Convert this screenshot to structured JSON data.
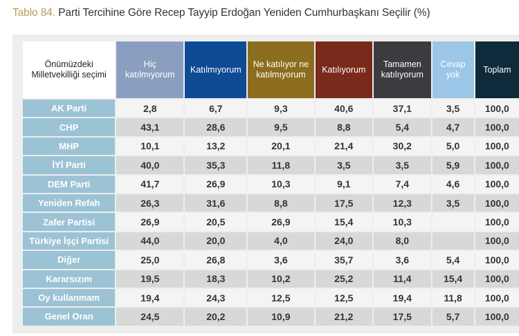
{
  "title": {
    "number": "Tablo 84.",
    "text": " Parti Tercihine Göre Recep Tayyip Erdoğan Yeniden Cumhurbaşkanı Seçilir (%)"
  },
  "table": {
    "corner_header": "Önümüzdeki Milletvekilliği seçimi",
    "columns": [
      {
        "label": "Hiç katılmıyorum",
        "color": "#8a9fbf"
      },
      {
        "label": "Katılmıyorum",
        "color": "#0f4a94"
      },
      {
        "label": "Ne katılıyor ne katılmıyorum",
        "color": "#8c6d1f"
      },
      {
        "label": "Katılıyorum",
        "color": "#7a2a1a"
      },
      {
        "label": "Tamamen katılıyorum",
        "color": "#3b3b40"
      },
      {
        "label": "Cevap yok",
        "color": "#9cc6e8"
      },
      {
        "label": "Toplam",
        "color": "#0d2b3a"
      }
    ],
    "rows": [
      {
        "label": "AK Parti",
        "values": [
          "2,8",
          "6,7",
          "9,3",
          "40,6",
          "37,1",
          "3,5",
          "100,0"
        ]
      },
      {
        "label": "CHP",
        "values": [
          "43,1",
          "28,6",
          "9,5",
          "8,8",
          "5,4",
          "4,7",
          "100,0"
        ]
      },
      {
        "label": "MHP",
        "values": [
          "10,1",
          "13,2",
          "20,1",
          "21,4",
          "30,2",
          "5,0",
          "100,0"
        ]
      },
      {
        "label": "İYİ Parti",
        "values": [
          "40,0",
          "35,3",
          "11,8",
          "3,5",
          "3,5",
          "5,9",
          "100,0"
        ]
      },
      {
        "label": "DEM Parti",
        "values": [
          "41,7",
          "26,9",
          "10,3",
          "9,1",
          "7,4",
          "4,6",
          "100,0"
        ]
      },
      {
        "label": "Yeniden Refah",
        "values": [
          "26,3",
          "31,6",
          "8,8",
          "17,5",
          "12,3",
          "3,5",
          "100,0"
        ]
      },
      {
        "label": "Zafer Partisi",
        "values": [
          "26,9",
          "20,5",
          "26,9",
          "15,4",
          "10,3",
          "",
          "100,0"
        ]
      },
      {
        "label": "Türkiye İşçi Partisi",
        "values": [
          "44,0",
          "20,0",
          "4,0",
          "24,0",
          "8,0",
          "",
          "100,0"
        ]
      },
      {
        "label": "Diğer",
        "values": [
          "25,0",
          "26,8",
          "3,6",
          "35,7",
          "3,6",
          "5,4",
          "100,0"
        ]
      },
      {
        "label": "Kararsızım",
        "values": [
          "19,5",
          "18,3",
          "10,2",
          "25,2",
          "11,4",
          "15,4",
          "100,0"
        ]
      },
      {
        "label": "Oy kullanmam",
        "values": [
          "19,4",
          "24,3",
          "12,5",
          "12,5",
          "19,4",
          "11,8",
          "100,0"
        ]
      },
      {
        "label": "Genel Oran",
        "values": [
          "24,5",
          "20,2",
          "10,9",
          "21,2",
          "17,5",
          "5,7",
          "100,0"
        ]
      }
    ]
  }
}
